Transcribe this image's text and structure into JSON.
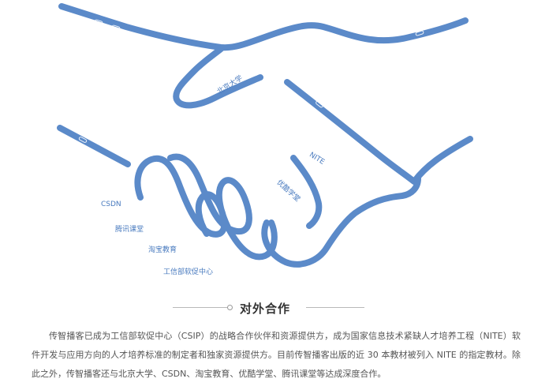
{
  "illustration": {
    "stroke_color": "#5b8ac9",
    "label_color": "#4a7bbf",
    "partners": {
      "pku": "北京大学",
      "nite": "NITE",
      "youku": "优酷学堂",
      "csdn": "CSDN",
      "tencent": "腾讯课堂",
      "taobao": "淘宝教育",
      "csip": "工信部软促中心"
    }
  },
  "section": {
    "title": "对外合作",
    "paragraph": "传智播客已成为工信部软促中心（CSIP）的战略合作伙伴和资源提供方，成为国家信息技术紧缺人才培养工程（NITE）软件开发与应用方向的人才培养标准的制定者和独家资源提供方。目前传智播客出版的近 30 本教材被列入 NITE 的指定教材。除此之外，传智播客还与北京大学、CSDN、淘宝教育、优酷学堂、腾讯课堂等达成深度合作。"
  }
}
